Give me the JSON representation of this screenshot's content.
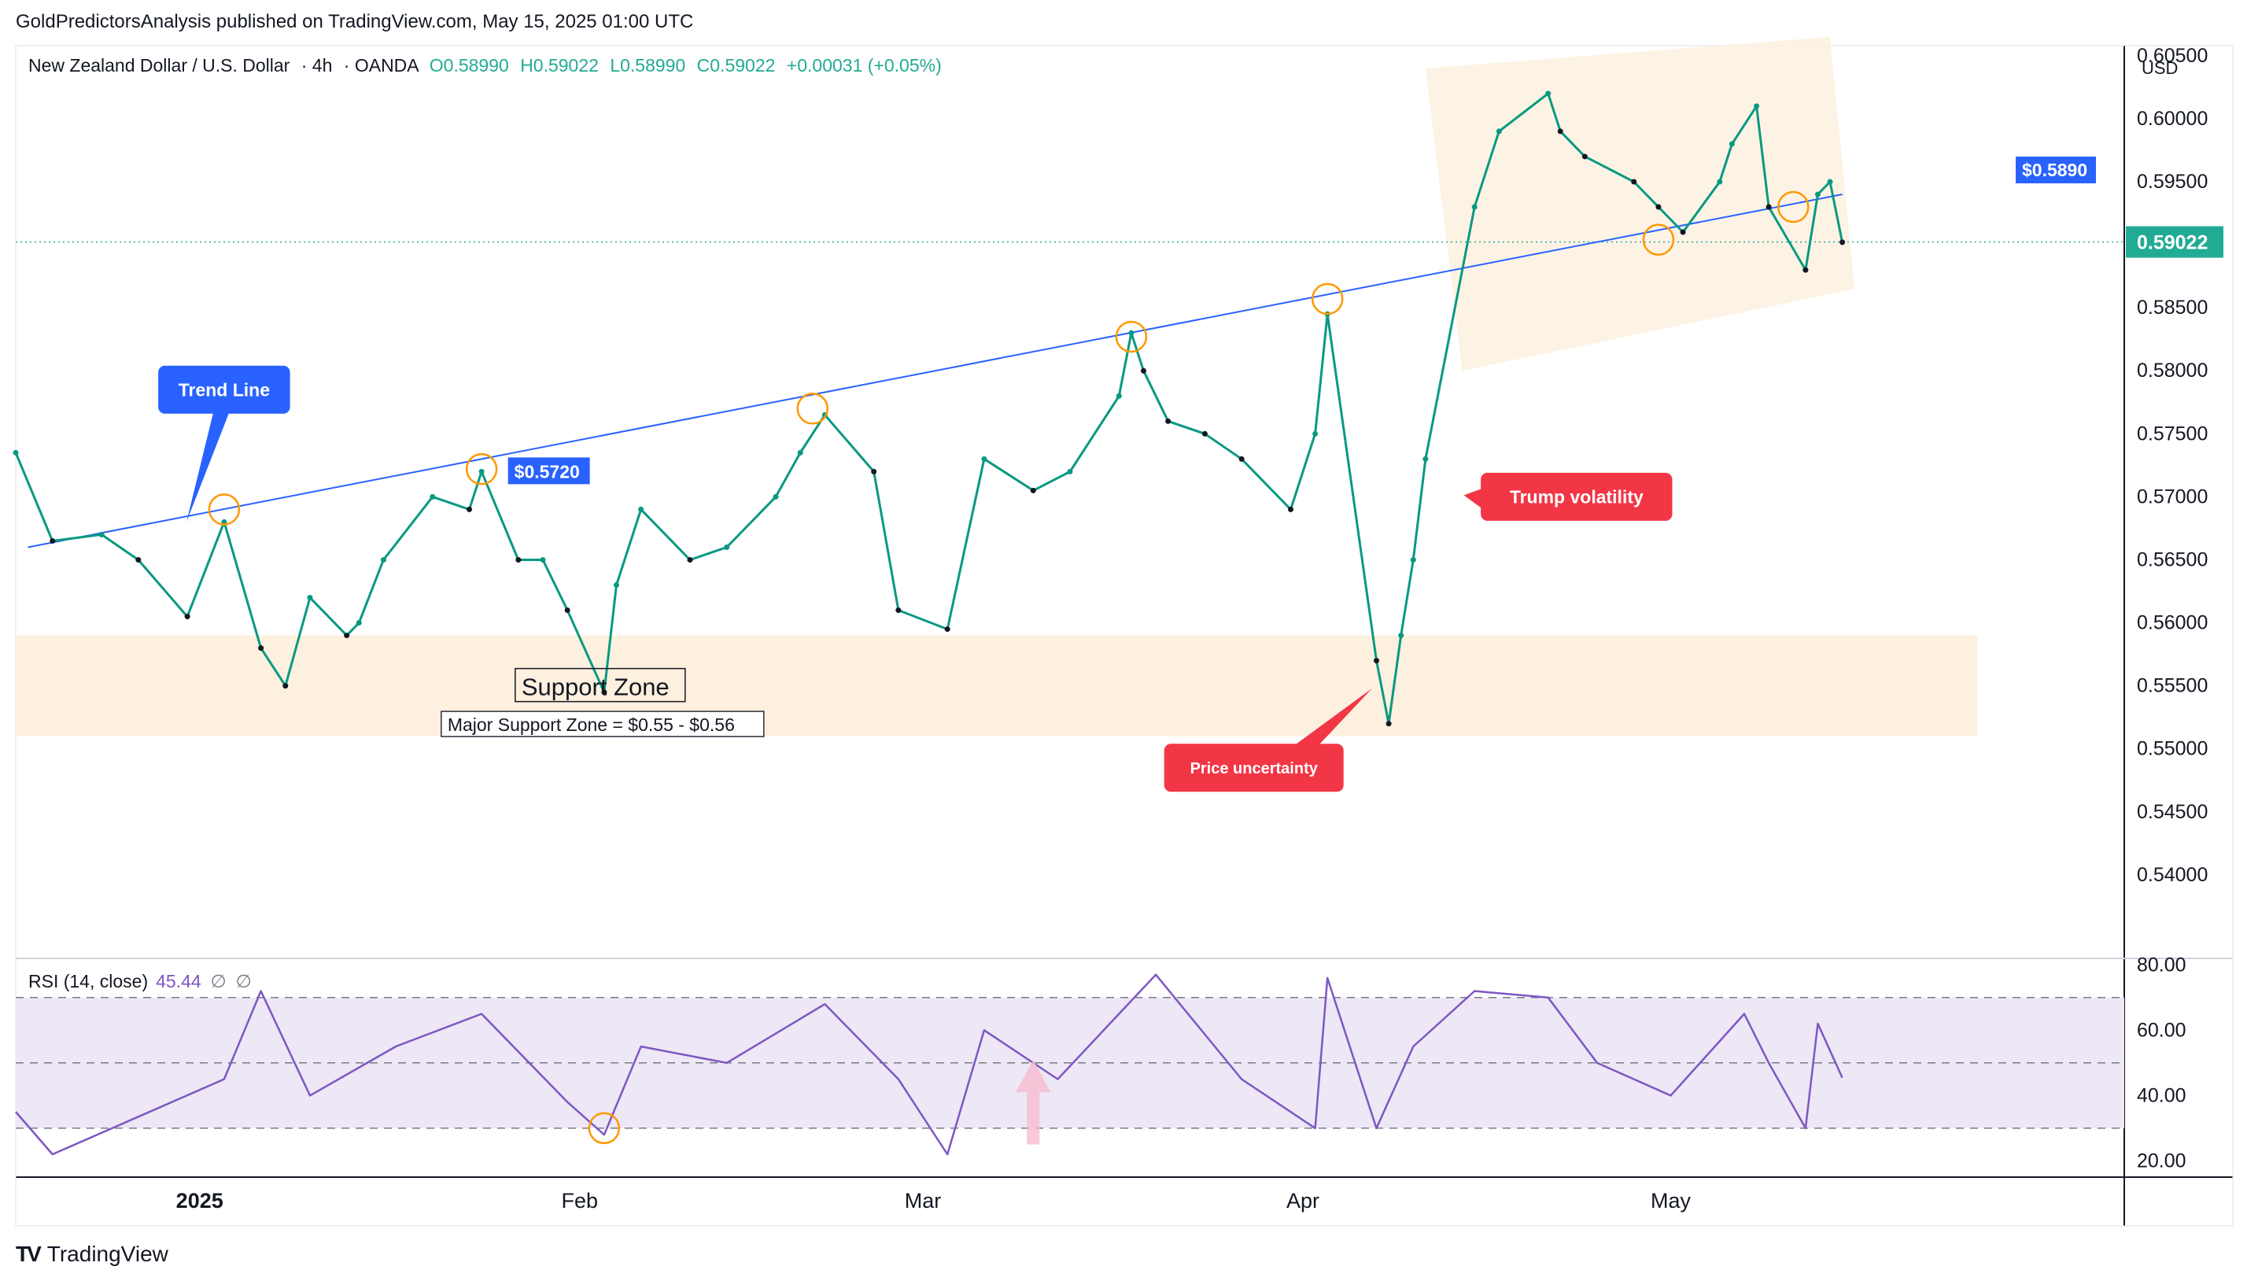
{
  "publisher_line": "GoldPredictorsAnalysis published on TradingView.com, May 15, 2025 01:00 UTC",
  "brand": "TradingView",
  "symbol": {
    "name": "New Zealand Dollar / U.S. Dollar",
    "interval": "4h",
    "exchange": "OANDA",
    "open": "O0.58990",
    "high": "H0.59022",
    "low": "L0.58990",
    "close": "C0.59022",
    "change": "+0.00031 (+0.05%)"
  },
  "currency": "USD",
  "colors": {
    "up": "#089981",
    "down": "#131722",
    "trendline": "#2962ff",
    "zone": "#fdf0de",
    "rsi": "#7e57c2",
    "rsi_band": "#ede7f6",
    "callout_red": "#f23645",
    "callout_blue": "#2962ff",
    "last_price": "#22ab94",
    "circle": "#ff9800"
  },
  "chart_data": {
    "type": "line",
    "series": [
      {
        "name": "NZDUSD 4h",
        "x": [
          "2024-12-17",
          "2024-12-20",
          "2024-12-24",
          "2024-12-27",
          "2024-12-31",
          "2025-01-03",
          "2025-01-06",
          "2025-01-08",
          "2025-01-10",
          "2025-01-13",
          "2025-01-14",
          "2025-01-16",
          "2025-01-20",
          "2025-01-23",
          "2025-01-24",
          "2025-01-27",
          "2025-01-29",
          "2025-01-31",
          "2025-02-03",
          "2025-02-04",
          "2025-02-06",
          "2025-02-10",
          "2025-02-13",
          "2025-02-17",
          "2025-02-19",
          "2025-02-21",
          "2025-02-25",
          "2025-02-27",
          "2025-03-03",
          "2025-03-06",
          "2025-03-10",
          "2025-03-13",
          "2025-03-17",
          "2025-03-18",
          "2025-03-19",
          "2025-03-21",
          "2025-03-24",
          "2025-03-27",
          "2025-03-31",
          "2025-04-02",
          "2025-04-03",
          "2025-04-07",
          "2025-04-08",
          "2025-04-09",
          "2025-04-10",
          "2025-04-11",
          "2025-04-15",
          "2025-04-17",
          "2025-04-21",
          "2025-04-22",
          "2025-04-24",
          "2025-04-28",
          "2025-04-30",
          "2025-05-02",
          "2025-05-05",
          "2025-05-06",
          "2025-05-08",
          "2025-05-09",
          "2025-05-12",
          "2025-05-13",
          "2025-05-14",
          "2025-05-15"
        ],
        "values": [
          0.5735,
          0.5665,
          0.567,
          0.565,
          0.5605,
          0.568,
          0.558,
          0.555,
          0.562,
          0.559,
          0.56,
          0.565,
          0.57,
          0.569,
          0.572,
          0.565,
          0.565,
          0.561,
          0.5545,
          0.563,
          0.569,
          0.565,
          0.566,
          0.57,
          0.5735,
          0.5765,
          0.572,
          0.561,
          0.5595,
          0.573,
          0.5705,
          0.572,
          0.578,
          0.583,
          0.58,
          0.576,
          0.575,
          0.573,
          0.569,
          0.575,
          0.5845,
          0.557,
          0.552,
          0.559,
          0.565,
          0.573,
          0.593,
          0.599,
          0.602,
          0.599,
          0.597,
          0.595,
          0.593,
          0.591,
          0.595,
          0.598,
          0.601,
          0.593,
          0.588,
          0.594,
          0.595,
          0.5902
        ]
      },
      {
        "name": "RSI (14, close)",
        "x": [
          "2024-12-17",
          "2024-12-20",
          "2025-01-03",
          "2025-01-06",
          "2025-01-10",
          "2025-01-17",
          "2025-01-24",
          "2025-01-31",
          "2025-02-03",
          "2025-02-06",
          "2025-02-13",
          "2025-02-21",
          "2025-02-27",
          "2025-03-03",
          "2025-03-06",
          "2025-03-12",
          "2025-03-17",
          "2025-03-20",
          "2025-03-27",
          "2025-04-02",
          "2025-04-03",
          "2025-04-07",
          "2025-04-10",
          "2025-04-15",
          "2025-04-21",
          "2025-04-25",
          "2025-05-01",
          "2025-05-07",
          "2025-05-09",
          "2025-05-12",
          "2025-05-13",
          "2025-05-15"
        ],
        "values": [
          35,
          22,
          45,
          72,
          40,
          55,
          65,
          38,
          28,
          55,
          50,
          68,
          45,
          22,
          60,
          45,
          65,
          77,
          45,
          30,
          76,
          30,
          55,
          72,
          70,
          50,
          40,
          65,
          50,
          30,
          62,
          45.44
        ]
      }
    ],
    "price_axis": {
      "ticks": [
        "0.60500",
        "0.60000",
        "0.59500",
        "0.59000",
        "0.58500",
        "0.58000",
        "0.57500",
        "0.57000",
        "0.56500",
        "0.56000",
        "0.55500",
        "0.55000",
        "0.54500",
        "0.54000"
      ],
      "ylim": [
        0.5335,
        0.6058
      ]
    },
    "rsi_axis": {
      "ticks": [
        "80.00",
        "60.00",
        "40.00",
        "20.00"
      ],
      "ylim": [
        15,
        82
      ],
      "levels": [
        70,
        50,
        30
      ]
    },
    "x_ticks": [
      {
        "label": "2025",
        "x": "2025-01-01",
        "bold": true
      },
      {
        "label": "Feb",
        "x": "2025-02-01",
        "bold": false
      },
      {
        "label": "Mar",
        "x": "2025-03-01",
        "bold": false
      },
      {
        "label": "Apr",
        "x": "2025-04-01",
        "bold": false
      },
      {
        "label": "May",
        "x": "2025-05-01",
        "bold": false
      }
    ],
    "xlim": [
      "2024-12-17",
      "2025-06-07"
    ],
    "trendline": {
      "x": [
        "2024-12-18",
        "2025-05-15"
      ],
      "y": [
        0.566,
        0.594
      ],
      "label": "$0.5890"
    },
    "last_price": {
      "value": 0.59022,
      "label": "0.59022"
    },
    "support_zone": {
      "y": [
        0.551,
        0.559
      ],
      "x": [
        "2024-12-17",
        "2025-05-26"
      ],
      "title": "Support Zone",
      "caption": "Major Support Zone = $0.55 - $0.56"
    },
    "price_label_5720": {
      "label": "$0.5720",
      "x": "2025-01-25",
      "y": 0.572
    },
    "channel": {
      "label": ""
    },
    "callouts": [
      {
        "text": "Trend Line",
        "x": "2025-01-03",
        "y": 0.5785,
        "color": "blue"
      },
      {
        "text": "Trump volatility",
        "x": "2025-04-14",
        "y": 0.57,
        "color": "red"
      },
      {
        "text": "Price uncertainty",
        "x": "2025-03-28",
        "y": 0.5485,
        "color": "red"
      }
    ],
    "touch_points": [
      {
        "x": "2025-01-03",
        "y": 0.569
      },
      {
        "x": "2025-01-24",
        "y": 0.5722
      },
      {
        "x": "2025-02-20",
        "y": 0.577
      },
      {
        "x": "2025-03-18",
        "y": 0.5827
      },
      {
        "x": "2025-04-03",
        "y": 0.5857
      },
      {
        "x": "2025-04-30",
        "y": 0.5904
      },
      {
        "x": "2025-05-11",
        "y": 0.593
      }
    ],
    "rsi_touch_points": [
      {
        "x": "2025-02-03",
        "y": 30
      }
    ]
  }
}
